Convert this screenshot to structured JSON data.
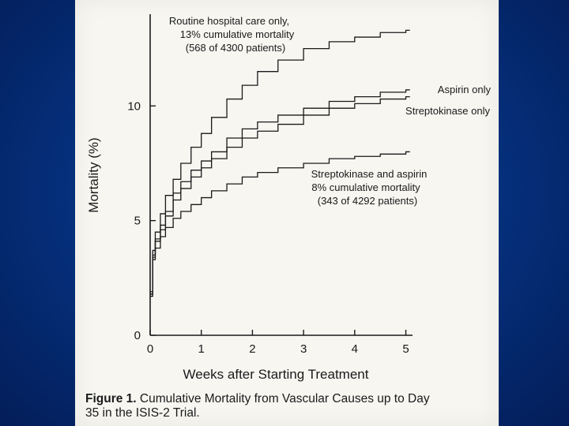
{
  "slide": {
    "background": "#063382",
    "panel": "#f7f6f1"
  },
  "chart_data": {
    "type": "line",
    "title": "",
    "xlabel": "Weeks after Starting Treatment",
    "ylabel": "Mortality (%)",
    "xlim": [
      0,
      5.1
    ],
    "ylim": [
      0,
      14
    ],
    "x_ticks": [
      0,
      1,
      2,
      3,
      4,
      5
    ],
    "y_ticks": [
      0,
      5,
      10
    ],
    "grid": false,
    "series": [
      {
        "name": "Routine hospital care only",
        "x": [
          0,
          0.05,
          0.1,
          0.2,
          0.3,
          0.45,
          0.6,
          0.8,
          1.0,
          1.2,
          1.5,
          1.8,
          2.1,
          2.5,
          3.0,
          3.5,
          4.0,
          4.5,
          5.0
        ],
        "y": [
          1.9,
          3.7,
          4.5,
          5.3,
          6.1,
          6.8,
          7.5,
          8.2,
          8.8,
          9.5,
          10.3,
          10.9,
          11.5,
          12.0,
          12.5,
          12.8,
          13.0,
          13.2,
          13.3
        ]
      },
      {
        "name": "Aspirin only",
        "x": [
          0,
          0.05,
          0.1,
          0.2,
          0.3,
          0.45,
          0.6,
          0.8,
          1.0,
          1.2,
          1.5,
          1.8,
          2.1,
          2.5,
          3.0,
          3.5,
          4.0,
          4.5,
          5.0
        ],
        "y": [
          1.8,
          3.5,
          4.2,
          4.8,
          5.4,
          6.2,
          6.7,
          7.2,
          7.6,
          8.0,
          8.6,
          9.0,
          9.3,
          9.6,
          9.9,
          10.2,
          10.4,
          10.6,
          10.7
        ]
      },
      {
        "name": "Streptokinase only",
        "x": [
          0,
          0.05,
          0.1,
          0.2,
          0.3,
          0.45,
          0.6,
          0.8,
          1.0,
          1.2,
          1.5,
          1.8,
          2.1,
          2.5,
          3.0,
          3.5,
          4.0,
          4.5,
          5.0
        ],
        "y": [
          1.8,
          3.4,
          4.1,
          4.6,
          5.2,
          5.9,
          6.4,
          6.9,
          7.3,
          7.7,
          8.2,
          8.6,
          8.9,
          9.2,
          9.6,
          9.9,
          10.1,
          10.3,
          10.4
        ]
      },
      {
        "name": "Streptokinase and aspirin",
        "x": [
          0,
          0.05,
          0.1,
          0.2,
          0.3,
          0.45,
          0.6,
          0.8,
          1.0,
          1.2,
          1.5,
          1.8,
          2.1,
          2.5,
          3.0,
          3.5,
          4.0,
          4.5,
          5.0
        ],
        "y": [
          1.7,
          3.3,
          3.8,
          4.3,
          4.7,
          5.1,
          5.4,
          5.7,
          6.0,
          6.3,
          6.6,
          6.9,
          7.1,
          7.3,
          7.5,
          7.7,
          7.8,
          7.9,
          8.0
        ]
      }
    ],
    "annotations": {
      "routine": [
        "Routine hospital care only,",
        "13% cumulative mortality",
        "(568 of 4300 patients)"
      ],
      "aspirin": [
        "Aspirin only"
      ],
      "streptokinase": [
        "Streptokinase only"
      ],
      "combined": [
        "Streptokinase and aspirin",
        "8% cumulative mortality",
        "(343 of 4292 patients)"
      ]
    }
  },
  "caption": {
    "label": "Figure 1.",
    "line1_rest": " Cumulative Mortality from Vascular Causes up to Day",
    "line2": "35 in the ISIS-2 Trial."
  }
}
